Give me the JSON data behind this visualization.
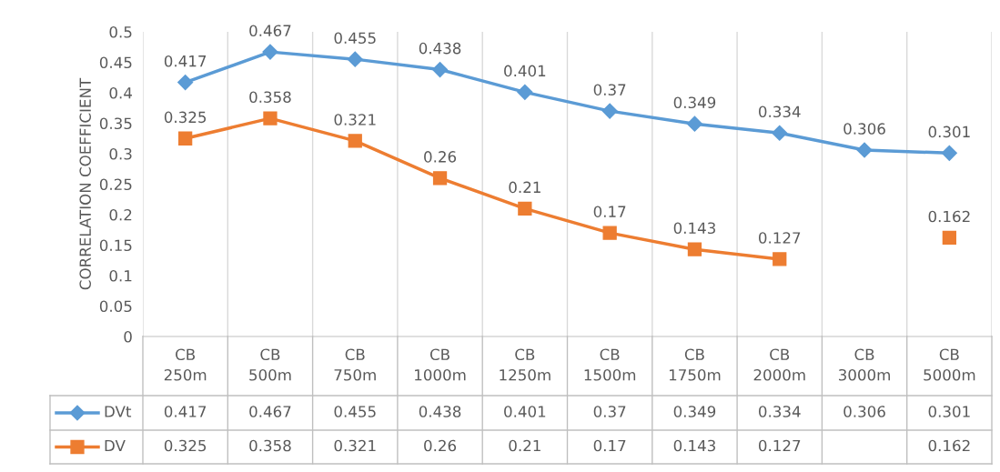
{
  "chart_data": {
    "type": "line",
    "ylabel": "CORRELATION COEFFICIENT",
    "categories": [
      "CB\n250m",
      "CB\n500m",
      "CB\n750m",
      "CB\n1000m",
      "CB\n1250m",
      "CB\n1500m",
      "CB\n1750m",
      "CB\n2000m",
      "CB\n3000m",
      "CB\n5000m"
    ],
    "series": [
      {
        "name": "DVt",
        "color": "#5b9bd5",
        "marker": "diamond",
        "values": [
          0.417,
          0.467,
          0.455,
          0.438,
          0.401,
          0.37,
          0.349,
          0.334,
          0.306,
          0.301
        ],
        "value_labels": [
          "0.417",
          "0.467",
          "0.455",
          "0.438",
          "0.401",
          "0.37",
          "0.349",
          "0.334",
          "0.306",
          "0.301"
        ]
      },
      {
        "name": "DV",
        "color": "#ed7d31",
        "marker": "square",
        "values": [
          0.325,
          0.358,
          0.321,
          0.26,
          0.21,
          0.17,
          0.143,
          0.127,
          null,
          0.162
        ],
        "value_labels": [
          "0.325",
          "0.358",
          "0.321",
          "0.26",
          "0.21",
          "0.17",
          "0.143",
          "0.127",
          null,
          "0.162"
        ]
      }
    ],
    "ylim": [
      0,
      0.5
    ],
    "yticks": [
      0,
      0.05,
      0.1,
      0.15,
      0.2,
      0.25,
      0.3,
      0.35,
      0.4,
      0.45,
      0.5
    ],
    "annotations": [
      "0.417",
      "0.467",
      "0.455",
      "0.438",
      "0.401",
      "0.37",
      "0.349",
      "0.334",
      "0.306",
      "0.301",
      "0.325",
      "0.358",
      "0.321",
      "0.26",
      "0.21",
      "0.17",
      "0.143",
      "0.127",
      "0.162"
    ],
    "grid": "x",
    "legend": "bottom",
    "data_labels": true,
    "line_style": "solid"
  }
}
